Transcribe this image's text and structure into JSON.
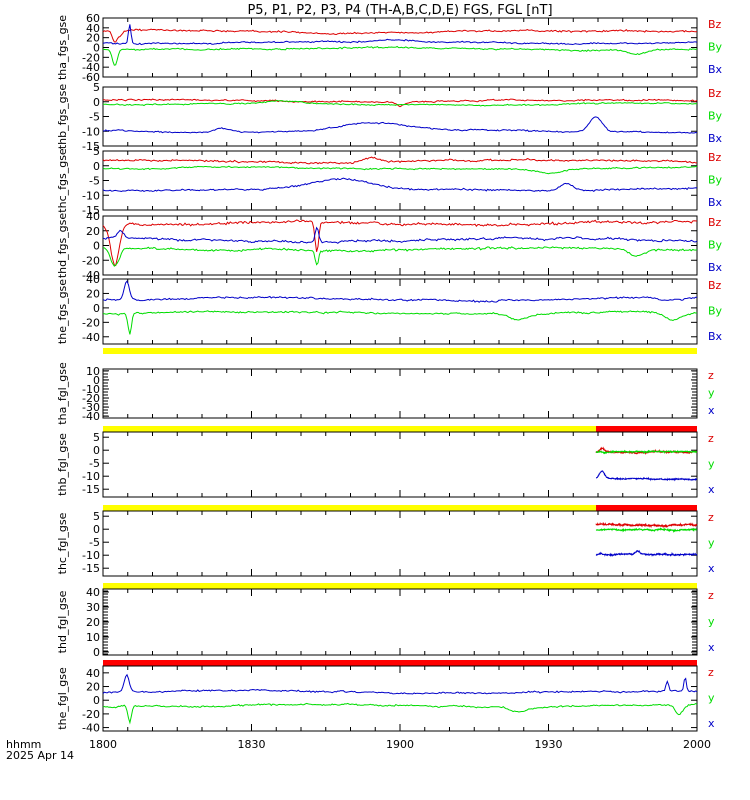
{
  "title": "P5, P1, P2, P3, P4 (TH-A,B,C,D,E) FGS, FGL [nT]",
  "footer": {
    "line1": "hhmm",
    "line2": "2025 Apr 14"
  },
  "colors": {
    "x": "#0000c8",
    "y": "#00dc00",
    "z": "#dc0000",
    "bar_yellow": "#ffff00",
    "bar_red": "#ff0000"
  },
  "chart_data": {
    "type": "line",
    "x_ticks": [
      "1800",
      "1830",
      "1900",
      "1930",
      "2000"
    ],
    "x_range_hhmm": [
      "1800",
      "2000"
    ],
    "panels": [
      {
        "ylabel": "tha_fgs_gse",
        "ylim": [
          -60,
          60
        ],
        "yticks": [
          "-60",
          "-40",
          "-20",
          "0",
          "20",
          "40",
          "60"
        ],
        "legend": [
          "Bz",
          "By",
          "Bx"
        ],
        "has_data": true,
        "data_start": 0.0,
        "series": [
          {
            "comp": "z",
            "base": 32,
            "noise": 3,
            "feat": [
              [
                0.02,
                -25,
                0.006
              ],
              [
                0.03,
                -10,
                0.004
              ]
            ]
          },
          {
            "comp": "y",
            "base": -3,
            "noise": 2.5,
            "feat": [
              [
                0.02,
                -35,
                0.006
              ],
              [
                0.9,
                -8,
                0.02
              ]
            ]
          },
          {
            "comp": "x",
            "base": 10,
            "noise": 2.5,
            "feat": [
              [
                0.045,
                40,
                0.003
              ],
              [
                0.5,
                4,
                0.05
              ]
            ]
          }
        ]
      },
      {
        "ylabel": "thb_fgs_gse",
        "ylim": [
          -15,
          5
        ],
        "yticks": [
          "-15",
          "-10",
          "-5",
          "0",
          "5"
        ],
        "legend": [
          "Bz",
          "By",
          "Bx"
        ],
        "has_data": true,
        "data_start": 0.0,
        "series": [
          {
            "comp": "z",
            "base": 0.3,
            "noise": 0.4,
            "feat": [
              [
                0.5,
                -1.5,
                0.01
              ]
            ]
          },
          {
            "comp": "y",
            "base": -0.8,
            "noise": 0.35,
            "feat": [
              [
                0.3,
                0.8,
                0.04
              ]
            ]
          },
          {
            "comp": "x",
            "base": -10,
            "noise": 0.4,
            "feat": [
              [
                0.45,
                3,
                0.07
              ],
              [
                0.83,
                5,
                0.015
              ],
              [
                0.2,
                1.5,
                0.02
              ]
            ]
          }
        ]
      },
      {
        "ylabel": "thc_fgs_gse",
        "ylim": [
          -15,
          5
        ],
        "yticks": [
          "-15",
          "-10",
          "-5",
          "0",
          "5"
        ],
        "legend": [
          "Bz",
          "By",
          "Bx"
        ],
        "has_data": true,
        "data_start": 0.0,
        "series": [
          {
            "comp": "z",
            "base": 1.5,
            "noise": 0.5,
            "feat": [
              [
                0.45,
                1.5,
                0.02
              ]
            ]
          },
          {
            "comp": "y",
            "base": -0.8,
            "noise": 0.4,
            "feat": [
              [
                0.75,
                -1.5,
                0.03
              ]
            ]
          },
          {
            "comp": "x",
            "base": -8,
            "noise": 0.5,
            "feat": [
              [
                0.4,
                3,
                0.07
              ],
              [
                0.78,
                2.5,
                0.015
              ]
            ]
          }
        ]
      },
      {
        "ylabel": "thd_fgs_gse",
        "ylim": [
          -40,
          40
        ],
        "yticks": [
          "-40",
          "-20",
          "0",
          "20",
          "40"
        ],
        "legend": [
          "Bz",
          "By",
          "Bx"
        ],
        "has_data": true,
        "data_start": 0.0,
        "series": [
          {
            "comp": "z",
            "base": 30,
            "noise": 3,
            "feat": [
              [
                0.02,
                -55,
                0.01
              ],
              [
                0.36,
                -40,
                0.004
              ]
            ]
          },
          {
            "comp": "y",
            "base": -5,
            "noise": 2.5,
            "feat": [
              [
                0.02,
                -25,
                0.01
              ],
              [
                0.36,
                -20,
                0.004
              ],
              [
                0.9,
                -10,
                0.02
              ]
            ]
          },
          {
            "comp": "x",
            "base": 8,
            "noise": 2.5,
            "feat": [
              [
                0.03,
                10,
                0.008
              ],
              [
                0.36,
                20,
                0.004
              ]
            ]
          }
        ]
      },
      {
        "ylabel": "the_fgs_gse",
        "ylim": [
          -50,
          40
        ],
        "yticks": [
          "-40",
          "-20",
          "0",
          "20",
          "40"
        ],
        "legend": [
          "Bz",
          "By",
          "Bx"
        ],
        "has_data": true,
        "data_start": 0.0,
        "series": [
          {
            "comp": "y",
            "base": -7,
            "noise": 2,
            "feat": [
              [
                0.045,
                -30,
                0.004
              ],
              [
                0.7,
                -8,
                0.02
              ],
              [
                0.96,
                -10,
                0.02
              ]
            ]
          },
          {
            "comp": "x",
            "base": 12,
            "noise": 2,
            "feat": [
              [
                0.04,
                25,
                0.006
              ],
              [
                0.95,
                -4,
                0.03
              ]
            ]
          }
        ]
      },
      {
        "ylabel": "tha_fgl_gse",
        "ylim": [
          -42,
          12
        ],
        "yticks": [
          "-40",
          "-30",
          "-20",
          "-10",
          "0",
          "10"
        ],
        "legend": [
          "z",
          "y",
          "x"
        ],
        "has_data": false,
        "bar": [
          [
            "yellow",
            0,
            1
          ]
        ]
      },
      {
        "ylabel": "thb_fgl_gse",
        "ylim": [
          -18,
          7
        ],
        "yticks": [
          "-15",
          "-10",
          "-5",
          "0",
          "5"
        ],
        "legend": [
          "z",
          "y",
          "x"
        ],
        "has_data": true,
        "data_start": 0.83,
        "bar": [
          [
            "yellow",
            0,
            0.83
          ],
          [
            "red",
            0.83,
            1
          ]
        ],
        "series": [
          {
            "comp": "z",
            "base": -1,
            "noise": 0.4,
            "feat": [
              [
                0.84,
                1.5,
                0.006
              ]
            ]
          },
          {
            "comp": "y",
            "base": -0.8,
            "noise": 0.35,
            "feat": []
          },
          {
            "comp": "x",
            "base": -11,
            "noise": 0.3,
            "feat": [
              [
                0.84,
                3,
                0.006
              ]
            ]
          }
        ]
      },
      {
        "ylabel": "thc_fgl_gse",
        "ylim": [
          -18,
          7
        ],
        "yticks": [
          "-15",
          "-10",
          "-5",
          "0",
          "5"
        ],
        "legend": [
          "z",
          "y",
          "x"
        ],
        "has_data": true,
        "data_start": 0.83,
        "bar": [
          [
            "yellow",
            0,
            0.83
          ],
          [
            "red",
            0.83,
            1
          ]
        ],
        "series": [
          {
            "comp": "z",
            "base": 1.8,
            "noise": 0.5,
            "feat": []
          },
          {
            "comp": "y",
            "base": -0.5,
            "noise": 0.4,
            "feat": []
          },
          {
            "comp": "x",
            "base": -9.5,
            "noise": 0.4,
            "feat": [
              [
                0.9,
                1.5,
                0.005
              ]
            ]
          }
        ]
      },
      {
        "ylabel": "thd_fgl_gse",
        "ylim": [
          -2,
          42
        ],
        "yticks": [
          "0",
          "10",
          "20",
          "30",
          "40"
        ],
        "legend": [
          "z",
          "y",
          "x"
        ],
        "has_data": false,
        "bar": [
          [
            "yellow",
            0,
            1
          ]
        ]
      },
      {
        "ylabel": "the_fgl_gse",
        "ylim": [
          -45,
          50
        ],
        "yticks": [
          "-40",
          "-20",
          "0",
          "20",
          "40"
        ],
        "legend": [
          "z",
          "y",
          "x"
        ],
        "has_data": true,
        "data_start": 0.0,
        "bar": [
          [
            "red",
            0,
            1
          ]
        ],
        "series": [
          {
            "comp": "y",
            "base": -8,
            "noise": 2,
            "feat": [
              [
                0.045,
                -25,
                0.004
              ],
              [
                0.7,
                -8,
                0.02
              ],
              [
                0.97,
                -15,
                0.01
              ]
            ]
          },
          {
            "comp": "x",
            "base": 12,
            "noise": 2,
            "feat": [
              [
                0.04,
                25,
                0.006
              ],
              [
                0.95,
                15,
                0.003
              ],
              [
                0.98,
                20,
                0.003
              ]
            ]
          }
        ]
      }
    ]
  }
}
